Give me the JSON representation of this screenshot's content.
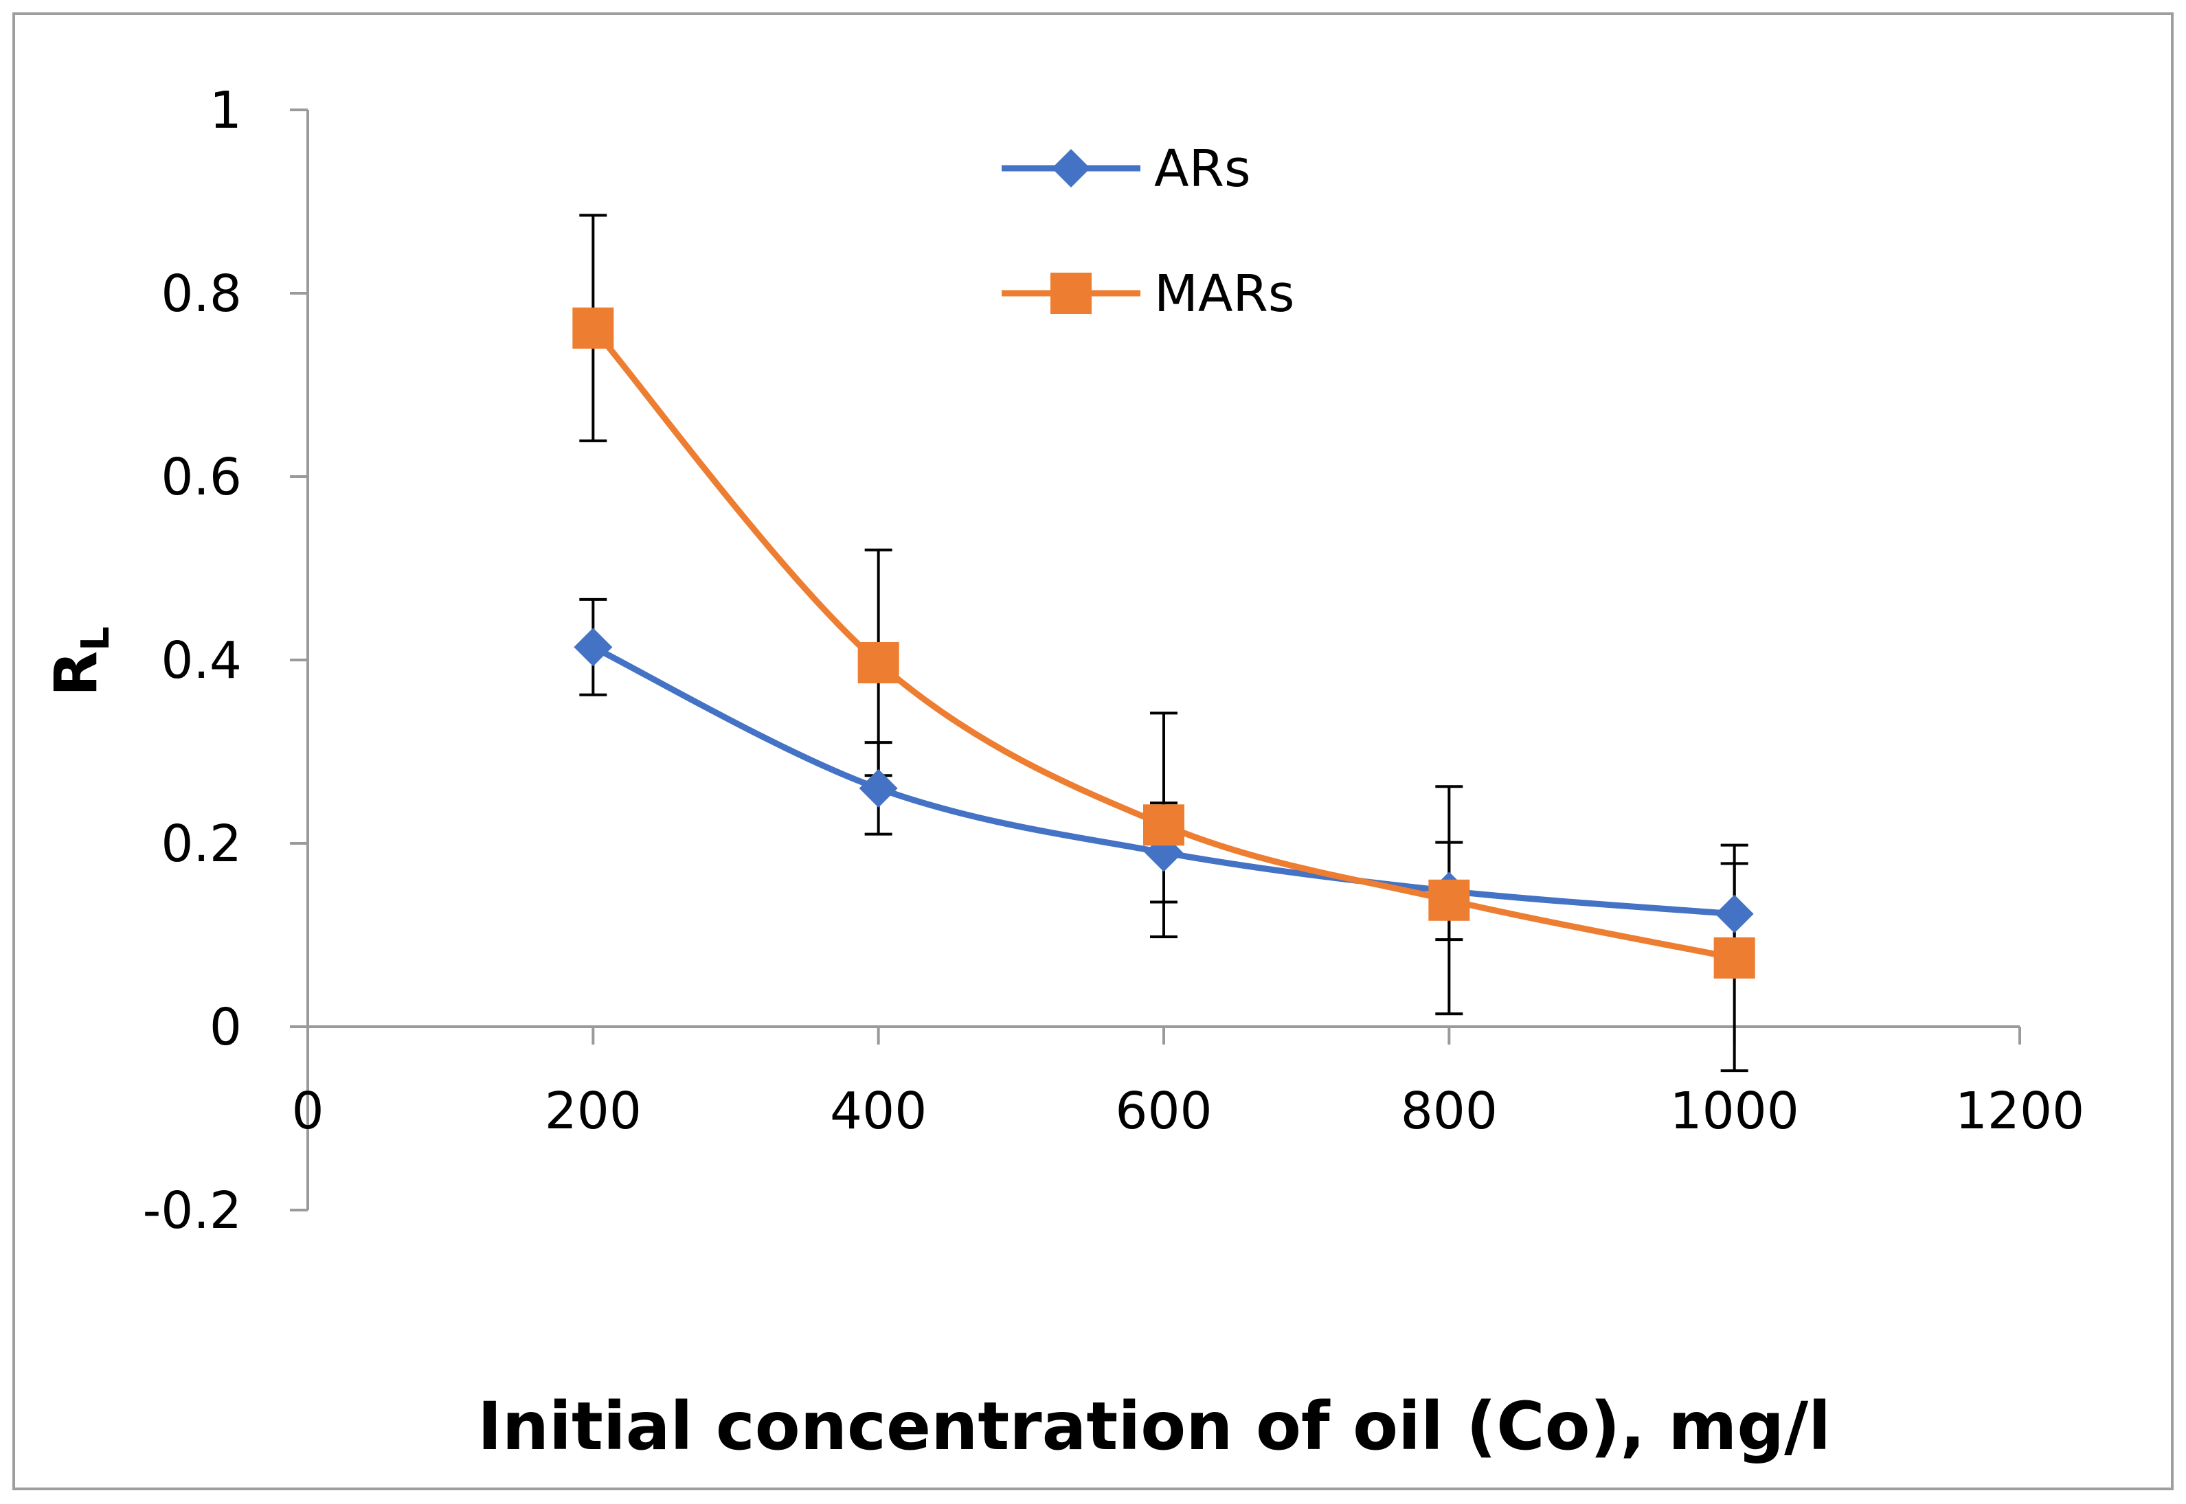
{
  "chart_data": {
    "type": "line",
    "title": "",
    "xlabel": "Initial concentration of oil (Co), mg/l",
    "ylabel": "R",
    "ylabel_subscript": "L",
    "xlim": [
      0,
      1200
    ],
    "ylim": [
      -0.2,
      1
    ],
    "x_ticks": [
      "0",
      "200",
      "400",
      "600",
      "800",
      "1000",
      "1200"
    ],
    "y_ticks": [
      "-0.2",
      "0",
      "0.2",
      "0.4",
      "0.6",
      "0.8",
      "1"
    ],
    "grid": false,
    "legend_position": "top-center",
    "x": [
      200,
      400,
      600,
      800,
      1000
    ],
    "series": [
      {
        "name": "ARs",
        "color": "#4472C4",
        "marker": "diamond",
        "smooth": true,
        "values": [
          0.414,
          0.26,
          0.19,
          0.148,
          0.123
        ],
        "error": [
          0.052,
          0.05,
          0.054,
          0.053,
          0.055
        ]
      },
      {
        "name": "MARs",
        "color": "#ED7D31",
        "marker": "square",
        "smooth": true,
        "values": [
          0.762,
          0.397,
          0.22,
          0.138,
          0.075
        ],
        "error": [
          0.123,
          0.123,
          0.122,
          0.124,
          0.123
        ]
      }
    ]
  }
}
